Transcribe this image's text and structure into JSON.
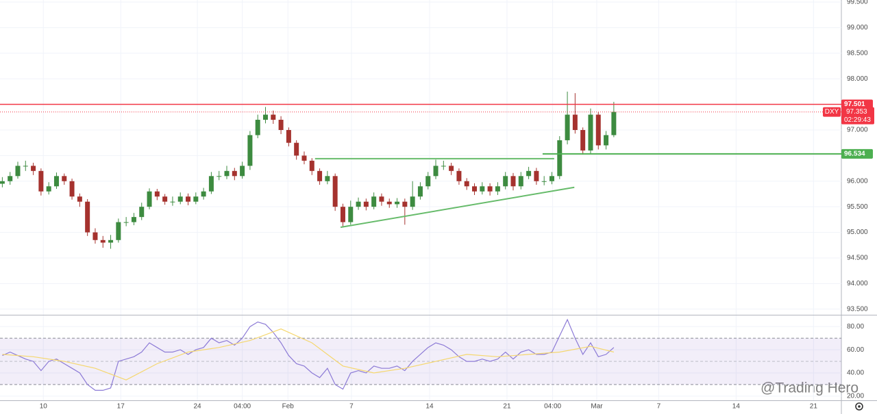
{
  "chart_data": [
    {
      "type": "candlestick",
      "symbol": "DXY",
      "last_price": 97.353,
      "countdown": "02:29:43",
      "watermark": "@Trading Hero",
      "up_color": "#3d8b40",
      "down_color": "#a5322e",
      "xlim": [
        -0.3,
        108.4
      ],
      "ylim": [
        93.39,
        99.54
      ],
      "yticks": [
        {
          "value": 99.5,
          "label": "99.500"
        },
        {
          "value": 99,
          "label": "99.000"
        },
        {
          "value": 98.5,
          "label": "98.500"
        },
        {
          "value": 98,
          "label": "98.000"
        },
        {
          "value": 97.5,
          "label": "97.500"
        },
        {
          "value": 97,
          "label": "97.000"
        },
        {
          "value": 96.5,
          "label": "96.500"
        },
        {
          "value": 96,
          "label": "96.000"
        },
        {
          "value": 95.5,
          "label": "95.500"
        },
        {
          "value": 95,
          "label": "95.000"
        },
        {
          "value": 94.5,
          "label": "94.500"
        },
        {
          "value": 94,
          "label": "94.000"
        },
        {
          "value": 93.5,
          "label": "93.500"
        }
      ],
      "open": [
        95.95,
        96.0,
        96.1,
        96.3,
        96.3,
        96.2,
        95.8,
        95.9,
        96.1,
        96.0,
        95.7,
        95.6,
        95.0,
        94.85,
        94.8,
        94.85,
        95.2,
        95.2,
        95.3,
        95.5,
        95.8,
        95.7,
        95.6,
        95.6,
        95.7,
        95.6,
        95.7,
        95.8,
        96.1,
        96.1,
        96.2,
        96.1,
        96.3,
        96.9,
        97.2,
        97.3,
        97.2,
        97.0,
        96.75,
        96.5,
        96.4,
        96.2,
        96.0,
        96.1,
        95.5,
        95.2,
        95.5,
        95.6,
        95.5,
        95.7,
        95.6,
        95.55,
        95.6,
        95.5,
        95.7,
        95.9,
        96.1,
        96.3,
        96.3,
        96.2,
        96.0,
        95.9,
        95.8,
        95.9,
        95.8,
        95.9,
        96.1,
        95.9,
        96.1,
        96.2,
        96.0,
        96.0,
        96.1,
        96.8,
        97.3,
        97.0,
        96.6,
        97.3,
        96.7,
        96.9
      ],
      "high": [
        96.08,
        96.18,
        96.38,
        96.4,
        96.36,
        96.25,
        95.98,
        96.17,
        96.15,
        96.05,
        95.76,
        95.65,
        95.08,
        94.93,
        94.95,
        95.27,
        95.3,
        95.38,
        95.58,
        95.86,
        95.85,
        95.75,
        95.7,
        95.78,
        95.76,
        95.78,
        95.87,
        96.18,
        96.2,
        96.3,
        96.26,
        96.38,
        96.98,
        97.3,
        97.45,
        97.38,
        97.27,
        97.05,
        96.8,
        96.58,
        96.45,
        96.25,
        96.2,
        96.15,
        95.56,
        95.62,
        95.68,
        95.66,
        95.78,
        95.76,
        95.66,
        95.67,
        95.66,
        96.0,
        95.98,
        96.18,
        96.42,
        96.4,
        96.36,
        96.25,
        96.06,
        95.96,
        95.98,
        95.96,
        95.98,
        96.18,
        96.16,
        96.18,
        96.28,
        96.26,
        96.1,
        96.18,
        96.88,
        97.75,
        97.72,
        97.05,
        97.42,
        97.35,
        96.98,
        97.55
      ],
      "low": [
        95.88,
        95.93,
        96.05,
        96.2,
        96.12,
        95.72,
        95.74,
        95.85,
        95.93,
        95.64,
        95.5,
        94.93,
        94.78,
        94.7,
        94.68,
        94.8,
        95.12,
        95.14,
        95.24,
        95.45,
        95.63,
        95.54,
        95.52,
        95.55,
        95.53,
        95.55,
        95.64,
        95.75,
        96.02,
        96.04,
        96.02,
        96.05,
        96.22,
        96.84,
        97.13,
        97.12,
        96.92,
        96.68,
        96.42,
        96.33,
        96.12,
        95.93,
        95.94,
        95.42,
        95.12,
        95.15,
        95.44,
        95.43,
        95.45,
        95.52,
        95.48,
        95.48,
        95.15,
        95.44,
        95.64,
        95.84,
        96.04,
        96.22,
        96.12,
        95.93,
        95.83,
        95.73,
        95.74,
        95.72,
        95.73,
        95.84,
        95.82,
        95.84,
        96.04,
        95.93,
        95.92,
        95.94,
        96.04,
        96.72,
        96.93,
        96.52,
        96.54,
        96.62,
        96.62,
        96.86
      ],
      "close": [
        96.0,
        96.1,
        96.3,
        96.3,
        96.2,
        95.8,
        95.9,
        96.1,
        96.0,
        95.7,
        95.6,
        95.0,
        94.85,
        94.8,
        94.85,
        95.2,
        95.2,
        95.3,
        95.5,
        95.8,
        95.7,
        95.6,
        95.6,
        95.7,
        95.6,
        95.7,
        95.8,
        96.1,
        96.1,
        96.2,
        96.1,
        96.3,
        96.9,
        97.2,
        97.3,
        97.2,
        97.0,
        96.75,
        96.5,
        96.4,
        96.2,
        96.0,
        96.1,
        95.5,
        95.2,
        95.5,
        95.6,
        95.5,
        95.7,
        95.6,
        95.55,
        95.6,
        95.5,
        95.7,
        95.9,
        96.1,
        96.3,
        96.3,
        96.2,
        96.0,
        95.9,
        95.8,
        95.9,
        95.8,
        95.9,
        96.1,
        95.9,
        96.1,
        96.2,
        96.0,
        96.0,
        96.1,
        96.8,
        97.3,
        97.0,
        96.6,
        97.3,
        96.7,
        96.9,
        97.353
      ],
      "hlines": [
        {
          "value": 97.501,
          "color": "#f23645"
        },
        {
          "value": 96.534,
          "color": "#4caf50",
          "x_start": 69.8
        }
      ],
      "trendlines": [
        {
          "x": [
            40.4,
            71.3
          ],
          "y": [
            96.44,
            96.44
          ],
          "color": "#66bb6a"
        },
        {
          "x": [
            43.7,
            73.9
          ],
          "y": [
            95.1,
            95.88
          ],
          "color": "#66bb6a"
        }
      ]
    },
    {
      "type": "line",
      "xlim": [
        -0.3,
        108.4
      ],
      "ylim": [
        16.4,
        89.6
      ],
      "yticks": [
        {
          "value": 80,
          "label": "80.00"
        },
        {
          "value": 60,
          "label": "60.00"
        },
        {
          "value": 40,
          "label": "40.00"
        },
        {
          "value": 20,
          "label": "20.00"
        }
      ],
      "band": [
        30,
        70
      ],
      "midline": 50,
      "band_color": "#7e57c2",
      "xticks": [
        {
          "value": 5.3,
          "label": "10"
        },
        {
          "value": 15.3,
          "label": "17"
        },
        {
          "value": 25.2,
          "label": "24"
        },
        {
          "value": 31.0,
          "label": "04:00"
        },
        {
          "value": 36.9,
          "label": "Feb"
        },
        {
          "value": 45.1,
          "label": "7"
        },
        {
          "value": 55.2,
          "label": "14"
        },
        {
          "value": 65.2,
          "label": "21"
        },
        {
          "value": 71.1,
          "label": "04:00"
        },
        {
          "value": 76.8,
          "label": "Mar"
        },
        {
          "value": 84.8,
          "label": "7"
        },
        {
          "value": 94.8,
          "label": "14"
        },
        {
          "value": 104.8,
          "label": "21"
        }
      ],
      "series": [
        {
          "color": "#8c7ad6",
          "values": [
            55,
            58,
            55,
            52,
            50,
            42,
            50,
            52,
            48,
            44,
            40,
            30,
            25,
            25,
            27,
            50,
            52,
            54,
            58,
            66,
            62,
            58,
            58,
            60,
            56,
            60,
            62,
            70,
            66,
            68,
            64,
            70,
            80,
            84,
            82,
            75,
            66,
            55,
            48,
            46,
            40,
            36,
            44,
            30,
            26,
            40,
            42,
            40,
            46,
            44,
            44,
            46,
            42,
            50,
            56,
            62,
            66,
            64,
            60,
            54,
            50,
            50,
            52,
            50,
            52,
            58,
            52,
            58,
            60,
            56,
            56,
            58,
            72,
            86,
            70,
            56,
            66,
            54,
            56,
            62
          ]
        },
        {
          "color": "#f5d76e",
          "x": [
            0,
            4,
            8,
            12,
            16,
            20,
            24,
            28,
            32,
            36,
            40,
            44,
            48,
            52,
            56,
            60,
            64,
            68,
            72,
            76,
            79
          ],
          "values": [
            56,
            54,
            50,
            44,
            34,
            48,
            58,
            62,
            68,
            78,
            66,
            46,
            40,
            44,
            50,
            56,
            54,
            56,
            58,
            63,
            58
          ]
        }
      ]
    }
  ]
}
